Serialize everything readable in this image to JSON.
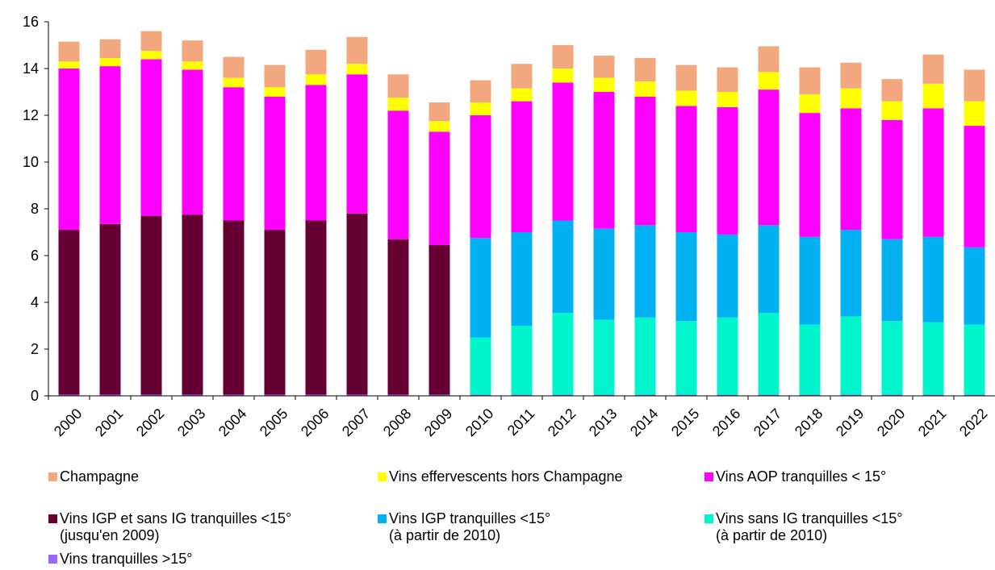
{
  "chart_data": {
    "type": "stacked_bar",
    "categories": [
      "2000",
      "2001",
      "2002",
      "2003",
      "2004",
      "2005",
      "2006",
      "2007",
      "2008",
      "2009",
      "2010",
      "2011",
      "2012",
      "2013",
      "2014",
      "2015",
      "2016",
      "2017",
      "2018",
      "2019",
      "2020",
      "2021",
      "2022"
    ],
    "series": [
      {
        "name": "Champagne",
        "color": "#f2a77f",
        "values": [
          0.85,
          0.8,
          0.85,
          0.9,
          0.9,
          0.95,
          1.05,
          1.15,
          1.0,
          0.8,
          0.95,
          1.05,
          1.0,
          0.95,
          1.0,
          1.1,
          1.05,
          1.1,
          1.15,
          1.1,
          0.95,
          1.25,
          1.35
        ]
      },
      {
        "name": "Vins effervescents hors Champagne",
        "color": "#ffff00",
        "values": [
          0.3,
          0.35,
          0.35,
          0.35,
          0.4,
          0.4,
          0.45,
          0.45,
          0.55,
          0.45,
          0.55,
          0.55,
          0.6,
          0.6,
          0.65,
          0.65,
          0.65,
          0.75,
          0.8,
          0.85,
          0.8,
          1.05,
          1.05
        ]
      },
      {
        "name": "Vins AOP tranquilles < 15°",
        "color": "#ff00ff",
        "values": [
          6.9,
          6.75,
          6.7,
          6.2,
          5.7,
          5.7,
          5.8,
          5.95,
          5.5,
          4.85,
          5.25,
          5.6,
          5.9,
          5.85,
          5.5,
          5.4,
          5.45,
          5.8,
          5.3,
          5.2,
          5.1,
          5.5,
          5.2
        ]
      },
      {
        "name": "Vins IGP et sans IG tranquilles <15°\n(jusqu'en 2009)",
        "color": "#660033",
        "values": [
          7.05,
          7.3,
          7.65,
          7.7,
          7.45,
          7.05,
          7.45,
          7.75,
          6.65,
          6.4,
          null,
          null,
          null,
          null,
          null,
          null,
          null,
          null,
          null,
          null,
          null,
          null,
          null
        ]
      },
      {
        "name": "Vins IGP tranquilles <15°\n(à partir de 2010)",
        "color": "#00b0f0",
        "values": [
          null,
          null,
          null,
          null,
          null,
          null,
          null,
          null,
          null,
          null,
          4.25,
          4.0,
          3.95,
          3.9,
          3.95,
          3.8,
          3.55,
          3.75,
          3.75,
          3.7,
          3.5,
          3.65,
          3.3
        ]
      },
      {
        "name": "Vins sans IG tranquilles <15°\n(à partir de 2010)",
        "color": "#00f5cc",
        "values": [
          null,
          null,
          null,
          null,
          null,
          null,
          null,
          null,
          null,
          null,
          2.45,
          2.95,
          3.5,
          3.2,
          3.3,
          3.15,
          3.3,
          3.5,
          3.0,
          3.35,
          3.15,
          3.1,
          3.0
        ]
      },
      {
        "name": "Vins tranquilles >15°",
        "color": "#9966ff",
        "values": [
          0.05,
          0.05,
          0.05,
          0.05,
          0.05,
          0.05,
          0.05,
          0.05,
          0.05,
          0.05,
          0.05,
          0.05,
          0.05,
          0.05,
          0.05,
          0.05,
          0.05,
          0.05,
          0.05,
          0.05,
          0.05,
          0.05,
          0.05
        ]
      }
    ],
    "ylim": [
      0,
      16
    ],
    "yticks": [
      0,
      2,
      4,
      6,
      8,
      10,
      12,
      14,
      16
    ],
    "grid": false
  }
}
